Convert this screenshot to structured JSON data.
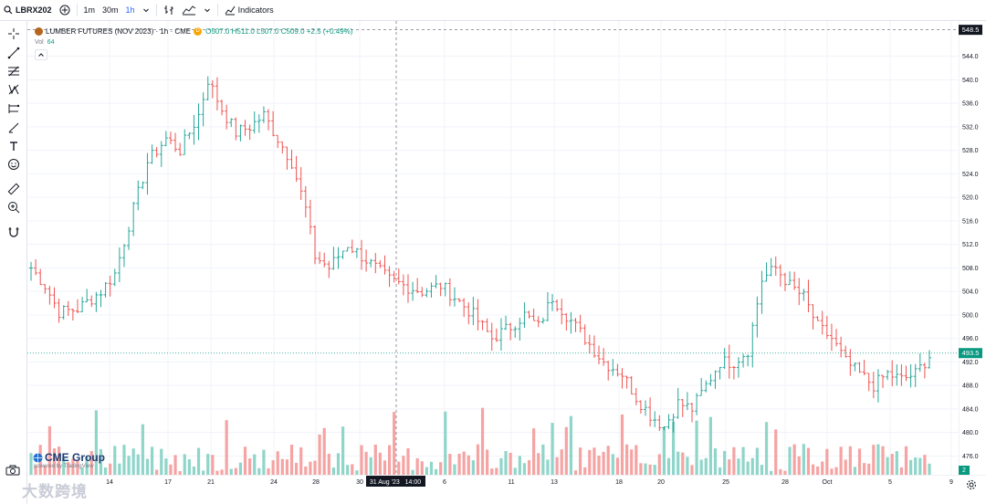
{
  "toolbar": {
    "symbol": "LBRX202",
    "intervals": [
      "1m",
      "30m",
      "1h"
    ],
    "active_interval": "1h",
    "indicators_label": "Indicators"
  },
  "legend": {
    "title": "LUMBER FUTURES (NOV 2023) · 1h · CME",
    "source_badge": "D",
    "ohlc": "O507.0 H511.0 L507.0 C509.0 +2.5 (+0.49%)",
    "vol_label": "Vol",
    "vol_value": "64"
  },
  "branding": {
    "logo_text": "CME Group",
    "powered_text": "powered by TradingView",
    "watermark": "大数跨境"
  },
  "price_axis": {
    "ticks": [
      "544.0",
      "540.0",
      "536.0",
      "532.0",
      "528.0",
      "524.0",
      "520.0",
      "516.0",
      "512.0",
      "508.0",
      "504.0",
      "500.0",
      "496.0",
      "492.0",
      "488.0",
      "484.0",
      "480.0",
      "476.0"
    ],
    "crosshair_label": "548.5",
    "last_price_label": "493.5",
    "volume_badge": "2"
  },
  "time_axis": {
    "ticks": [
      "14",
      "17",
      "21",
      "24",
      "28",
      "30",
      "6",
      "11",
      "13",
      "18",
      "20",
      "25",
      "28",
      "Oct",
      "5",
      "9"
    ],
    "crosshair_label": "31 Aug '23   14:00"
  },
  "colors": {
    "up": "#26a69a",
    "down": "#ef5350",
    "up_vol": "#8fd5c9",
    "down_vol": "#f5a3a3",
    "accent": "#2962ff",
    "last_price": "#089981"
  },
  "chart_data": {
    "type": "ohlc",
    "ylim": [
      472.8,
      550
    ],
    "last_price": 493.5,
    "crosshair_price": 548.5,
    "anchors": [
      {
        "t": 0,
        "c": 508.0
      },
      {
        "t": 3,
        "c": 505.0
      },
      {
        "t": 6,
        "c": 500.5
      },
      {
        "t": 10,
        "c": 501.0
      },
      {
        "t": 15,
        "c": 504.0
      },
      {
        "t": 18,
        "c": 507.0
      },
      {
        "t": 22,
        "c": 518.0
      },
      {
        "t": 25,
        "c": 526.0
      },
      {
        "t": 29,
        "c": 530.0
      },
      {
        "t": 32,
        "c": 528.0
      },
      {
        "t": 36,
        "c": 534.0
      },
      {
        "t": 38,
        "c": 540.0
      },
      {
        "t": 41,
        "c": 535.0
      },
      {
        "t": 44,
        "c": 531.0
      },
      {
        "t": 47,
        "c": 532.0
      },
      {
        "t": 50,
        "c": 534.0
      },
      {
        "t": 53,
        "c": 530.0
      },
      {
        "t": 56,
        "c": 526.0
      },
      {
        "t": 59,
        "c": 518.0
      },
      {
        "t": 61,
        "c": 510.0
      },
      {
        "t": 64,
        "c": 508.0
      },
      {
        "t": 68,
        "c": 512.0
      },
      {
        "t": 71,
        "c": 510.0
      },
      {
        "t": 74,
        "c": 508.0
      },
      {
        "t": 77,
        "c": 506.0
      },
      {
        "t": 80,
        "c": 505.0
      },
      {
        "t": 84,
        "c": 504.0
      },
      {
        "t": 88,
        "c": 505.0
      },
      {
        "t": 91,
        "c": 503.0
      },
      {
        "t": 95,
        "c": 500.0
      },
      {
        "t": 99,
        "c": 496.0
      },
      {
        "t": 103,
        "c": 498.0
      },
      {
        "t": 106,
        "c": 500.0
      },
      {
        "t": 109,
        "c": 498.0
      },
      {
        "t": 112,
        "c": 503.0
      },
      {
        "t": 115,
        "c": 500.0
      },
      {
        "t": 119,
        "c": 496.0
      },
      {
        "t": 123,
        "c": 492.0
      },
      {
        "t": 127,
        "c": 490.0
      },
      {
        "t": 130,
        "c": 486.0
      },
      {
        "t": 133,
        "c": 483.0
      },
      {
        "t": 136,
        "c": 481.0
      },
      {
        "t": 139,
        "c": 485.0
      },
      {
        "t": 142,
        "c": 484.0
      },
      {
        "t": 145,
        "c": 488.0
      },
      {
        "t": 148,
        "c": 492.0
      },
      {
        "t": 151,
        "c": 492.0
      },
      {
        "t": 154,
        "c": 494.0
      },
      {
        "t": 157,
        "c": 506.0
      },
      {
        "t": 160,
        "c": 508.0
      },
      {
        "t": 163,
        "c": 505.0
      },
      {
        "t": 166,
        "c": 503.0
      },
      {
        "t": 169,
        "c": 498.0
      },
      {
        "t": 172,
        "c": 496.0
      },
      {
        "t": 175,
        "c": 492.0
      },
      {
        "t": 178,
        "c": 490.0
      },
      {
        "t": 181,
        "c": 488.0
      },
      {
        "t": 184,
        "c": 490.0
      },
      {
        "t": 187,
        "c": 489.0
      },
      {
        "t": 190,
        "c": 490.0
      },
      {
        "t": 193,
        "c": 493.0
      }
    ]
  }
}
